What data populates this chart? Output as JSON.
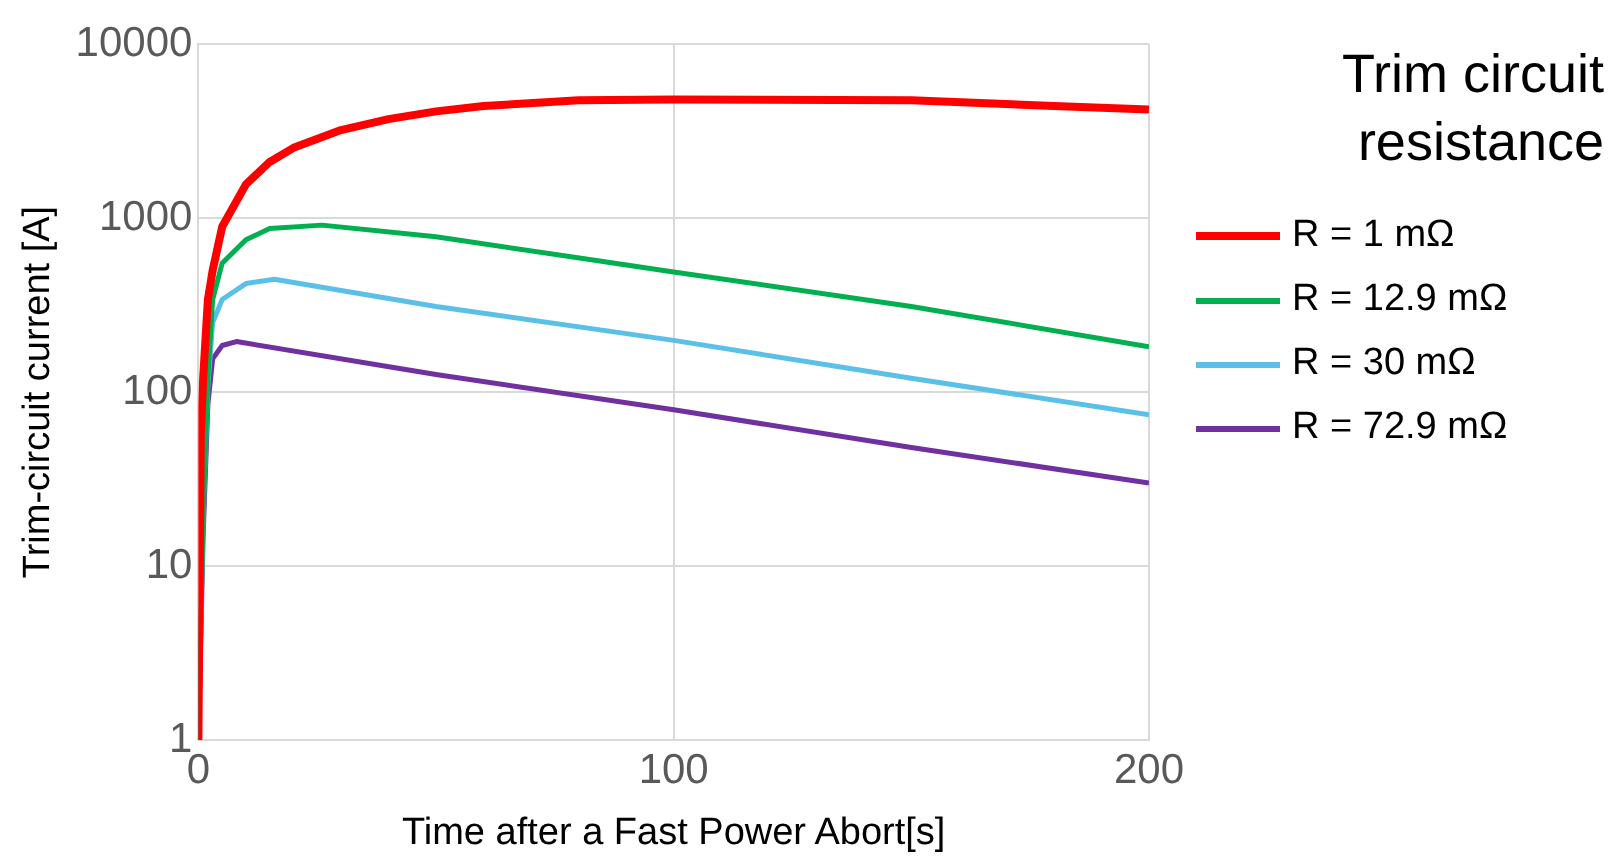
{
  "chart_data": {
    "type": "line",
    "xlabel": "Time after a Fast Power Abort[s]",
    "ylabel": "Trim-circuit current [A]",
    "legend_title": "Trim circuit resistance",
    "legend": "right",
    "log": "y",
    "grid": true,
    "marker": "none",
    "line_style": "solid",
    "xlim": [
      0,
      200
    ],
    "xticks": [
      0,
      100,
      200
    ],
    "ylim": [
      1,
      10000
    ],
    "yticks": [
      1,
      10,
      100,
      1000,
      10000
    ],
    "series": [
      {
        "name": "R = 1 mΩ",
        "color": "#ff0000",
        "x": [
          0,
          0.5,
          1,
          2,
          3,
          5,
          10,
          15,
          20,
          30,
          40,
          50,
          60,
          80,
          100,
          150,
          180,
          200
        ],
        "values": [
          1,
          55,
          120,
          340,
          500,
          890,
          1560,
          2100,
          2530,
          3200,
          3700,
          4100,
          4400,
          4750,
          4800,
          4750,
          4400,
          4200
        ]
      },
      {
        "name": "R = 12.9 mΩ",
        "color": "#00b050",
        "x": [
          0,
          1,
          2,
          3,
          5,
          10,
          15,
          26,
          50,
          100,
          150,
          200
        ],
        "values": [
          1,
          20,
          120,
          340,
          550,
          750,
          870,
          910,
          780,
          490,
          310,
          182
        ]
      },
      {
        "name": "R = 30 mΩ",
        "color": "#5bc0e8",
        "x": [
          0,
          1,
          2,
          3,
          5,
          10,
          16,
          50,
          100,
          150,
          200
        ],
        "values": [
          1,
          20,
          110,
          250,
          340,
          420,
          445,
          310,
          198,
          120,
          74
        ]
      },
      {
        "name": "R = 72.9 mΩ",
        "color": "#7030a0",
        "x": [
          0,
          1,
          2,
          3,
          5,
          8,
          50,
          100,
          150,
          200
        ],
        "values": [
          1,
          15,
          85,
          155,
          185,
          195,
          126,
          79,
          48,
          30
        ]
      }
    ]
  }
}
